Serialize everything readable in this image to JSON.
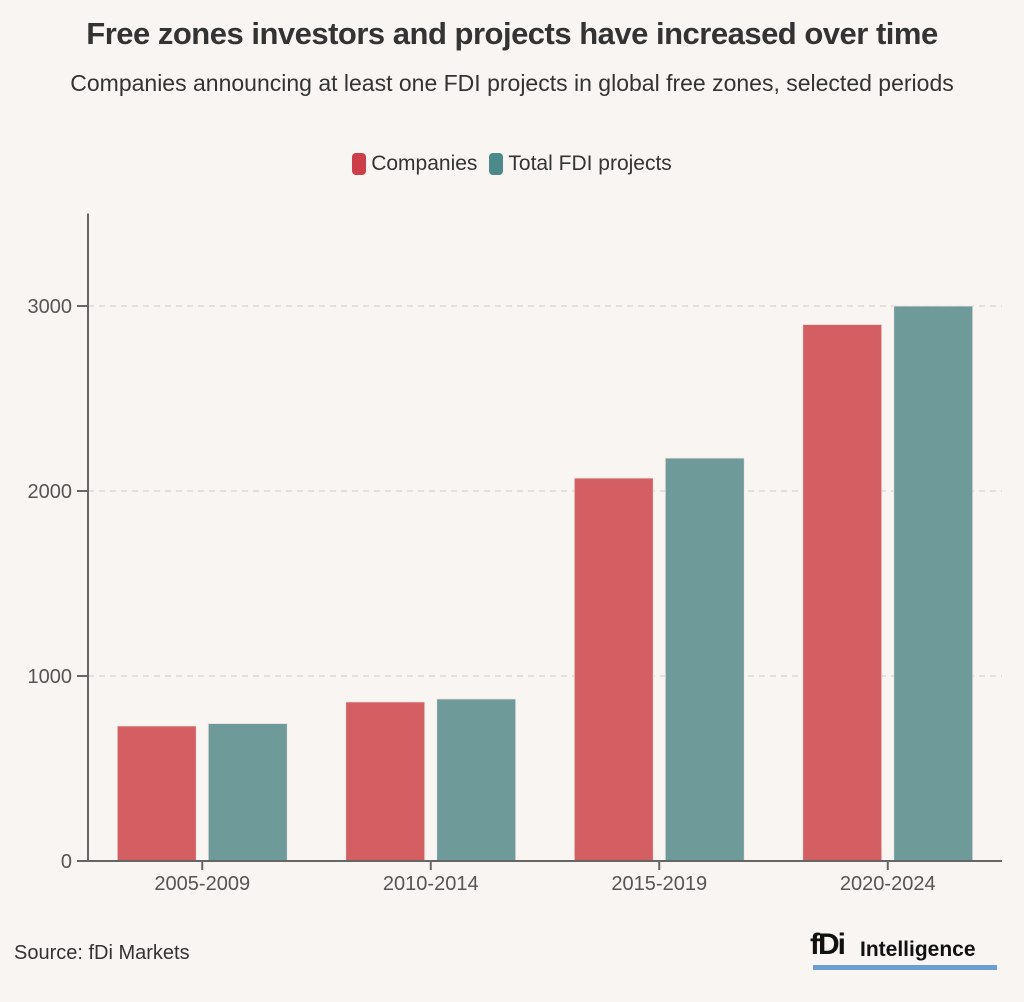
{
  "title": "Free zones investors and projects have increased over time",
  "subtitle": "Companies announcing at least one FDI projects in global free zones, selected periods",
  "source": "Source: fDi Markets",
  "logo": {
    "mark": "fDi",
    "text": "Intelligence"
  },
  "colors": {
    "companies": "#d35f62",
    "projects": "#6e9b9a",
    "legend_companies": "#cc3f48",
    "legend_projects": "#4c8a89"
  },
  "chart_data": {
    "type": "bar",
    "title": "Free zones investors and projects have increased over time",
    "subtitle": "Companies announcing at least one FDI projects in global free zones, selected periods",
    "categories": [
      "2005-2009",
      "2010-2014",
      "2015-2019",
      "2020-2024"
    ],
    "series": [
      {
        "name": "Companies",
        "values": [
          730,
          860,
          2070,
          2900
        ]
      },
      {
        "name": "Total FDI projects",
        "values": [
          743,
          876,
          2178,
          3000
        ]
      }
    ],
    "xlabel": "",
    "ylabel": "",
    "ylim": [
      0,
      3500
    ],
    "yticks": [
      0,
      1000,
      2000,
      3000
    ],
    "ytick_labels": [
      "0",
      "1000",
      "2000",
      "3000"
    ],
    "grid": true,
    "legend": "top-center"
  }
}
